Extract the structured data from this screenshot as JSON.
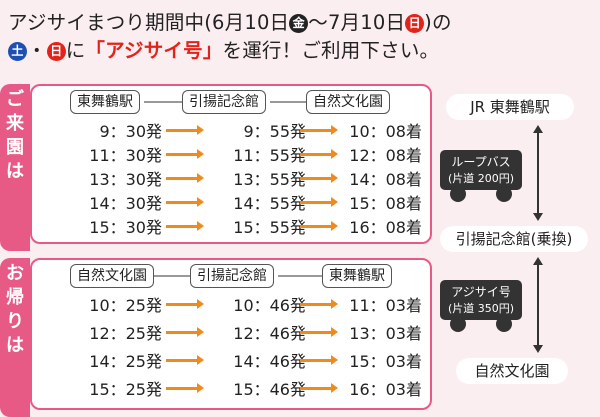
{
  "headline": {
    "line1_pre": "アジサイまつり期間中(6月10日",
    "badge_fri": "金",
    "line1_mid": "～7月10日",
    "badge_sun": "日",
    "line1_post": ")の",
    "badge_sat": "土",
    "dot": "・",
    "badge_sun2": "日",
    "line2_mid": "に",
    "service_name": "「アジサイ号」",
    "line2_post": "を運行！ご利用下さい。"
  },
  "outbound": {
    "tab": [
      "ご",
      "来",
      "園",
      "は"
    ],
    "stops": [
      "東舞鶴駅",
      "引揚記念館",
      "自然文化園"
    ],
    "rows": [
      {
        "a": "9：30発",
        "b": "9：55発",
        "c": "10：08着"
      },
      {
        "a": "11：30発",
        "b": "11：55発",
        "c": "12：08着"
      },
      {
        "a": "13：30発",
        "b": "13：55発",
        "c": "14：08着"
      },
      {
        "a": "14：30発",
        "b": "14：55発",
        "c": "15：08着"
      },
      {
        "a": "15：30発",
        "b": "15：55発",
        "c": "16：08着"
      }
    ]
  },
  "inbound": {
    "tab": [
      "お",
      "帰",
      "り",
      "は"
    ],
    "stops": [
      "自然文化園",
      "引揚記念館",
      "東舞鶴駅"
    ],
    "rows": [
      {
        "a": "10：25発",
        "b": "10：46発",
        "c": "11：03着"
      },
      {
        "a": "12：25発",
        "b": "12：46発",
        "c": "13：03着"
      },
      {
        "a": "14：25発",
        "b": "14：46発",
        "c": "15：03着"
      },
      {
        "a": "15：25発",
        "b": "15：46発",
        "c": "16：03着"
      }
    ]
  },
  "route": {
    "station_top": "JR 東舞鶴駅",
    "bus1_line1": "ループバス",
    "bus1_line2": "(片道 200円)",
    "transfer": "引揚記念館(乗換)",
    "bus2_line1": "アジサイ号",
    "bus2_line2": "(片道 350円)",
    "station_bottom": "自然文化園"
  },
  "colors": {
    "panel_border": "#e75a86",
    "arrow": "#f08a1c",
    "accent": "#e2231a",
    "badge_sat": "#1d4fb3"
  }
}
